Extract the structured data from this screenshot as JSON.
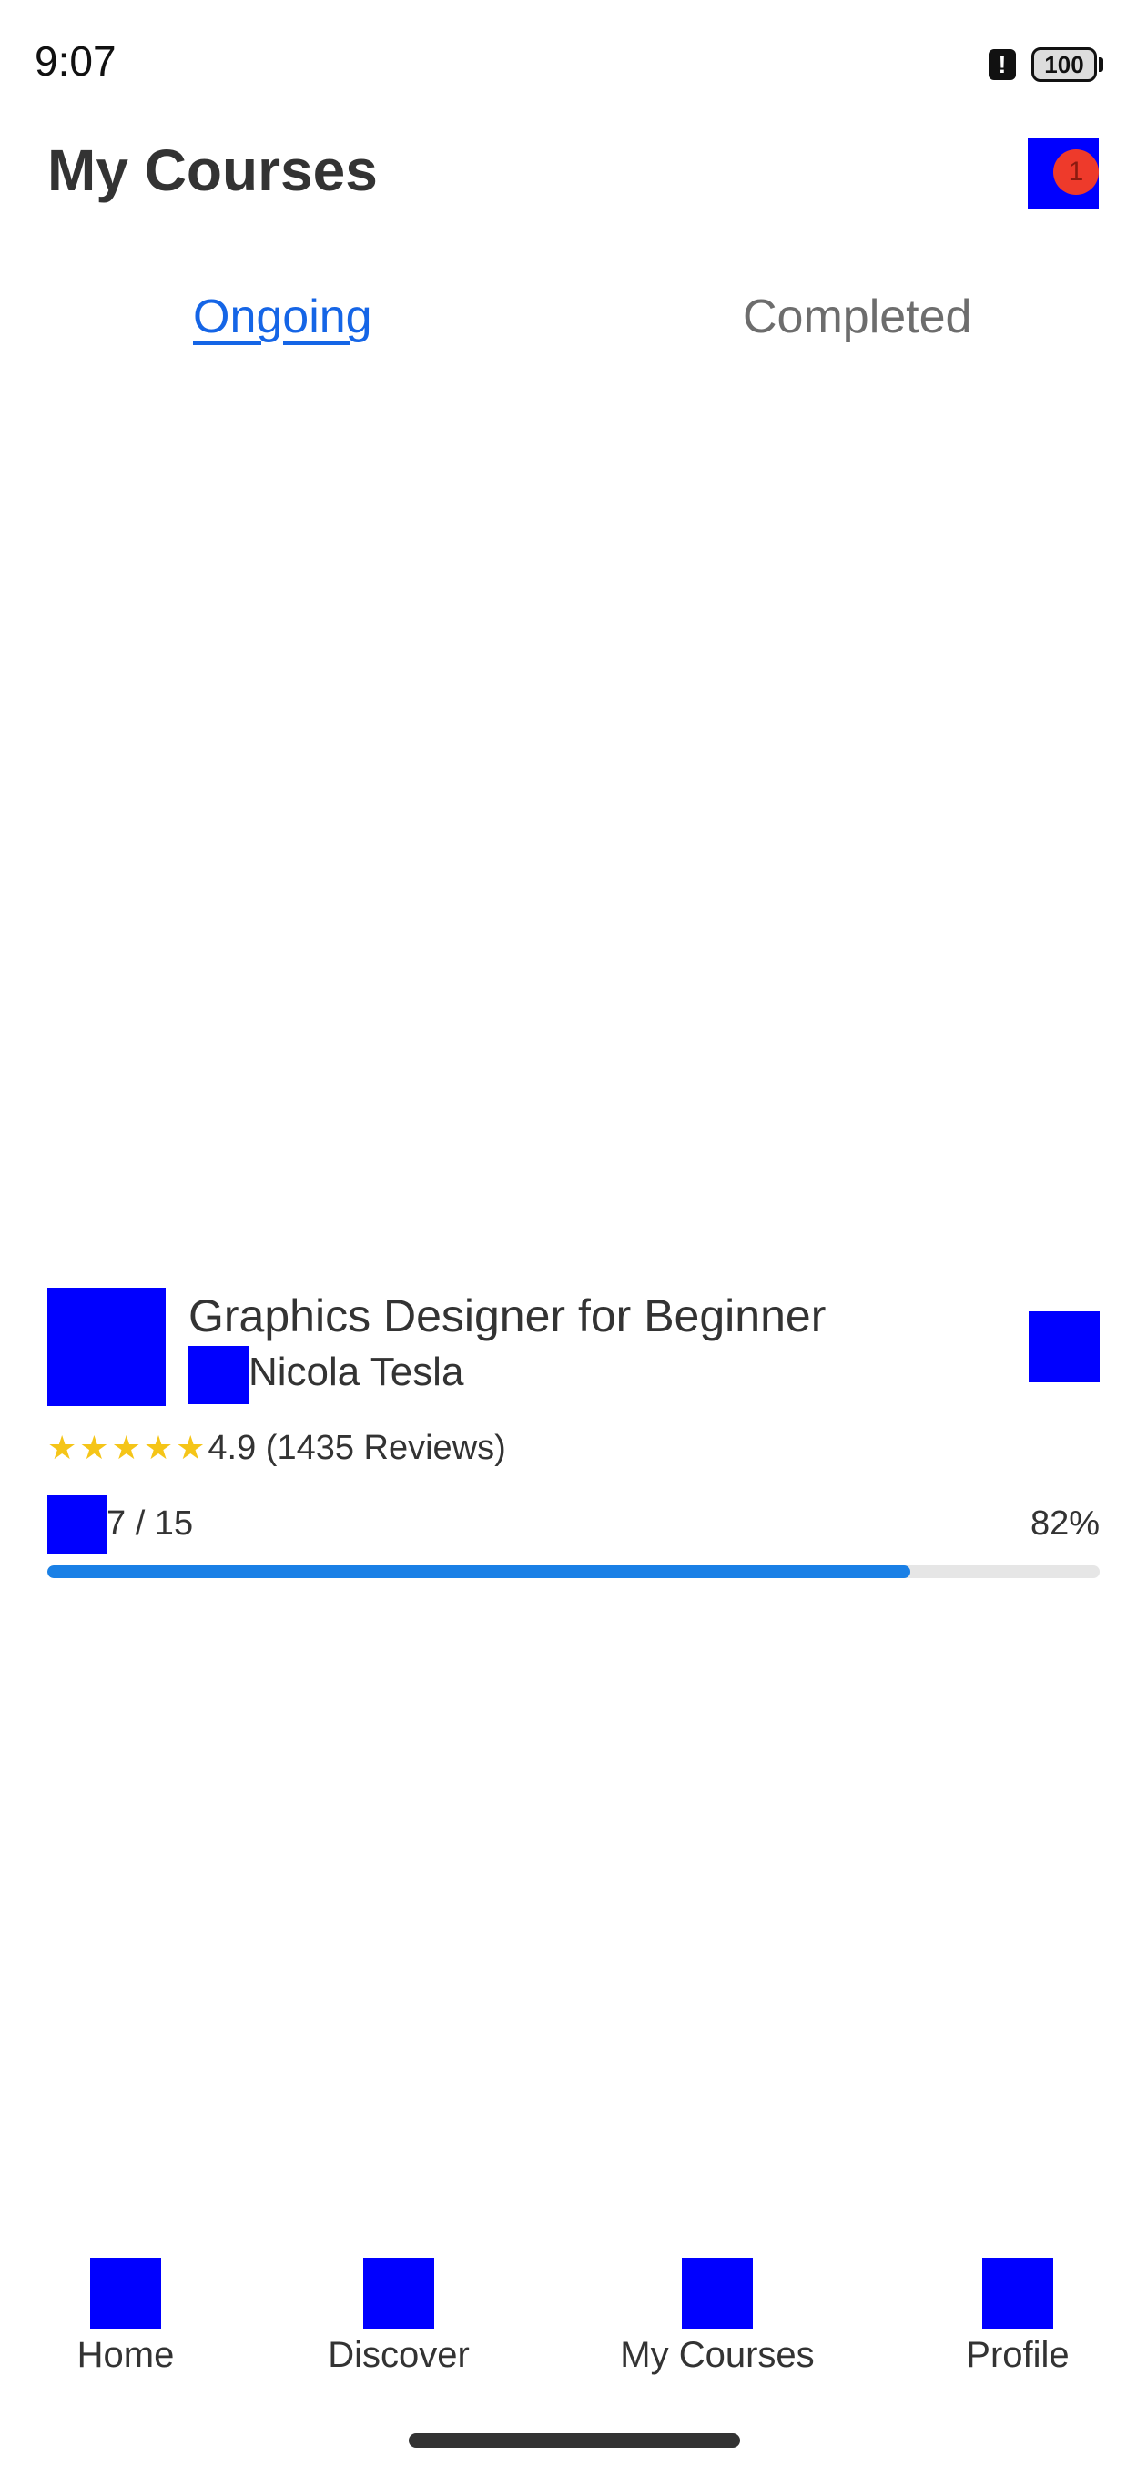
{
  "status_bar": {
    "time": "9:07",
    "alert_symbol": "!",
    "battery": "100"
  },
  "header": {
    "title": "My Courses",
    "notification_count": "1"
  },
  "tabs": [
    {
      "label": "Ongoing",
      "active": true
    },
    {
      "label": "Completed",
      "active": false
    }
  ],
  "course": {
    "title": "Graphics Designer for Beginner",
    "instructor": "Nicola Tesla",
    "stars": 5,
    "rating_text": "4.9 (1435 Reviews)",
    "lessons_text": "7 / 15",
    "progress_percent": 82,
    "progress_text": "82%"
  },
  "bottom_nav": [
    {
      "label": "Home"
    },
    {
      "label": "Discover"
    },
    {
      "label": "My Courses"
    },
    {
      "label": "Profile"
    }
  ],
  "colors": {
    "accent": "#1565e6",
    "progress": "#1a80e6",
    "badge": "#ee3a2b",
    "star": "#f5c518",
    "placeholder": "#0000ff"
  }
}
